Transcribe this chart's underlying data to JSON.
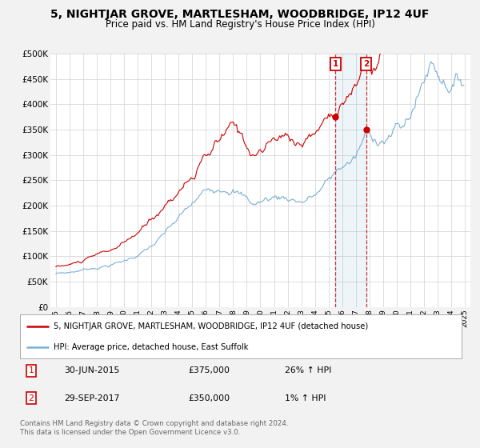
{
  "title": "5, NIGHTJAR GROVE, MARTLESHAM, WOODBRIDGE, IP12 4UF",
  "subtitle": "Price paid vs. HM Land Registry's House Price Index (HPI)",
  "ylim": [
    0,
    500000
  ],
  "yticks": [
    0,
    50000,
    100000,
    150000,
    200000,
    250000,
    300000,
    350000,
    400000,
    450000,
    500000
  ],
  "ytick_labels": [
    "£0",
    "£50K",
    "£100K",
    "£150K",
    "£200K",
    "£250K",
    "£300K",
    "£350K",
    "£400K",
    "£450K",
    "£500K"
  ],
  "hpi_color": "#7bafd4",
  "price_color": "#cc0000",
  "background_color": "#f2f2f2",
  "plot_bg_color": "#ffffff",
  "legend_label_price": "5, NIGHTJAR GROVE, MARTLESHAM, WOODBRIDGE, IP12 4UF (detached house)",
  "legend_label_hpi": "HPI: Average price, detached house, East Suffolk",
  "transaction1_date": "30-JUN-2015",
  "transaction1_price": 375000,
  "transaction1_hpi": "26% ↑ HPI",
  "transaction2_date": "29-SEP-2017",
  "transaction2_price": 350000,
  "transaction2_hpi": "1% ↑ HPI",
  "footer": "Contains HM Land Registry data © Crown copyright and database right 2024.\nThis data is licensed under the Open Government Licence v3.0.",
  "t1_year": 2015.5,
  "t2_year": 2017.75,
  "t1_price": 375000,
  "t2_price": 350000
}
